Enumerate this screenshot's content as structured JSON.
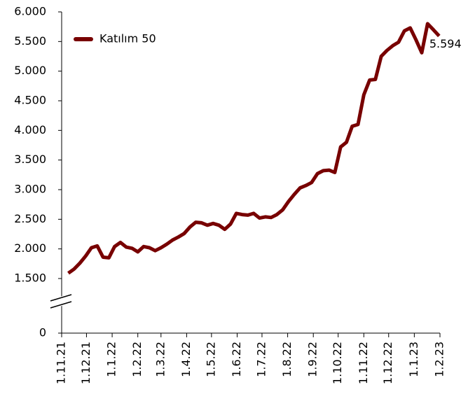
{
  "chart_data": {
    "type": "line",
    "broken_axis": true,
    "legend": "upper left",
    "series": [
      {
        "name": "Katılım 50",
        "color": "#780000",
        "x": [
          "2021-11-09",
          "2021-11-16",
          "2021-11-23",
          "2021-11-30",
          "2021-12-07",
          "2021-12-14",
          "2021-12-21",
          "2021-12-28",
          "2022-01-04",
          "2022-01-11",
          "2022-01-18",
          "2022-01-25",
          "2022-02-01",
          "2022-02-08",
          "2022-02-15",
          "2022-02-22",
          "2022-03-01",
          "2022-03-08",
          "2022-03-15",
          "2022-03-22",
          "2022-03-29",
          "2022-04-05",
          "2022-04-12",
          "2022-04-19",
          "2022-04-26",
          "2022-05-03",
          "2022-05-10",
          "2022-05-17",
          "2022-05-24",
          "2022-05-31",
          "2022-06-07",
          "2022-06-14",
          "2022-06-21",
          "2022-06-28",
          "2022-07-05",
          "2022-07-12",
          "2022-07-19",
          "2022-07-26",
          "2022-08-02",
          "2022-08-09",
          "2022-08-16",
          "2022-08-23",
          "2022-08-30",
          "2022-09-06",
          "2022-09-13",
          "2022-09-20",
          "2022-09-27",
          "2022-10-04",
          "2022-10-11",
          "2022-10-18",
          "2022-10-25",
          "2022-11-01",
          "2022-11-08",
          "2022-11-15",
          "2022-11-22",
          "2022-11-29",
          "2022-12-06",
          "2022-12-13",
          "2022-12-20",
          "2022-12-27",
          "2023-01-03",
          "2023-01-10",
          "2023-01-17",
          "2023-01-24",
          "2023-01-31"
        ],
        "values": [
          1590,
          1660,
          1760,
          1880,
          2020,
          2050,
          1860,
          1850,
          2040,
          2110,
          2030,
          2010,
          1950,
          2040,
          2020,
          1970,
          2020,
          2080,
          2150,
          2200,
          2260,
          2370,
          2450,
          2440,
          2400,
          2430,
          2400,
          2330,
          2420,
          2600,
          2580,
          2570,
          2600,
          2520,
          2540,
          2530,
          2580,
          2660,
          2800,
          2920,
          3030,
          3070,
          3120,
          3270,
          3320,
          3330,
          3290,
          3720,
          3800,
          4070,
          4100,
          4600,
          4850,
          4860,
          5250,
          5350,
          5430,
          5490,
          5680,
          5730,
          5530,
          5310,
          5800,
          5700,
          5594
        ],
        "value_labels": [
          null,
          null,
          null,
          null,
          null,
          null,
          null,
          null,
          null,
          null,
          null,
          null,
          null,
          null,
          null,
          null,
          null,
          null,
          null,
          null,
          null,
          null,
          null,
          null,
          null,
          null,
          null,
          null,
          null,
          null,
          null,
          null,
          null,
          null,
          null,
          null,
          null,
          null,
          null,
          null,
          null,
          null,
          null,
          null,
          null,
          null,
          null,
          null,
          null,
          null,
          null,
          null,
          null,
          null,
          null,
          null,
          null,
          null,
          null,
          null,
          null,
          null,
          null,
          null,
          "5.594"
        ]
      }
    ],
    "xlim": [
      "2021-11-01",
      "2023-02-01"
    ],
    "xticks": [
      {
        "value": "2021-11-01",
        "label": "1.11.21"
      },
      {
        "value": "2021-12-01",
        "label": "1.12.21"
      },
      {
        "value": "2022-01-01",
        "label": "1.1.22"
      },
      {
        "value": "2022-02-01",
        "label": "1.2.22"
      },
      {
        "value": "2022-03-01",
        "label": "1.3.22"
      },
      {
        "value": "2022-04-01",
        "label": "1.4.22"
      },
      {
        "value": "2022-05-01",
        "label": "1.5.22"
      },
      {
        "value": "2022-06-01",
        "label": "1.6.22"
      },
      {
        "value": "2022-07-01",
        "label": "1.7.22"
      },
      {
        "value": "2022-08-01",
        "label": "1.8.22"
      },
      {
        "value": "2022-09-01",
        "label": "1.9.22"
      },
      {
        "value": "2022-10-01",
        "label": "1.10.22"
      },
      {
        "value": "2022-11-01",
        "label": "1.11.22"
      },
      {
        "value": "2022-12-01",
        "label": "1.12.22"
      },
      {
        "value": "2023-01-01",
        "label": "1.1.23"
      },
      {
        "value": "2023-02-01",
        "label": "1.2.23"
      }
    ],
    "ylim": [
      0,
      6000
    ],
    "yticks": [
      0,
      {
        "value": 1500,
        "label": "1.500"
      },
      {
        "value": 2000,
        "label": "2.000"
      },
      {
        "value": 2500,
        "label": "2.500"
      },
      {
        "value": 3000,
        "label": "3.000"
      },
      {
        "value": 3500,
        "label": "3.500"
      },
      {
        "value": 4000,
        "label": "4.000"
      },
      {
        "value": 4500,
        "label": "4.500"
      },
      {
        "value": 5000,
        "label": "5.000"
      },
      {
        "value": 5500,
        "label": "5.500"
      },
      {
        "value": 6000,
        "label": "6.000"
      }
    ]
  }
}
